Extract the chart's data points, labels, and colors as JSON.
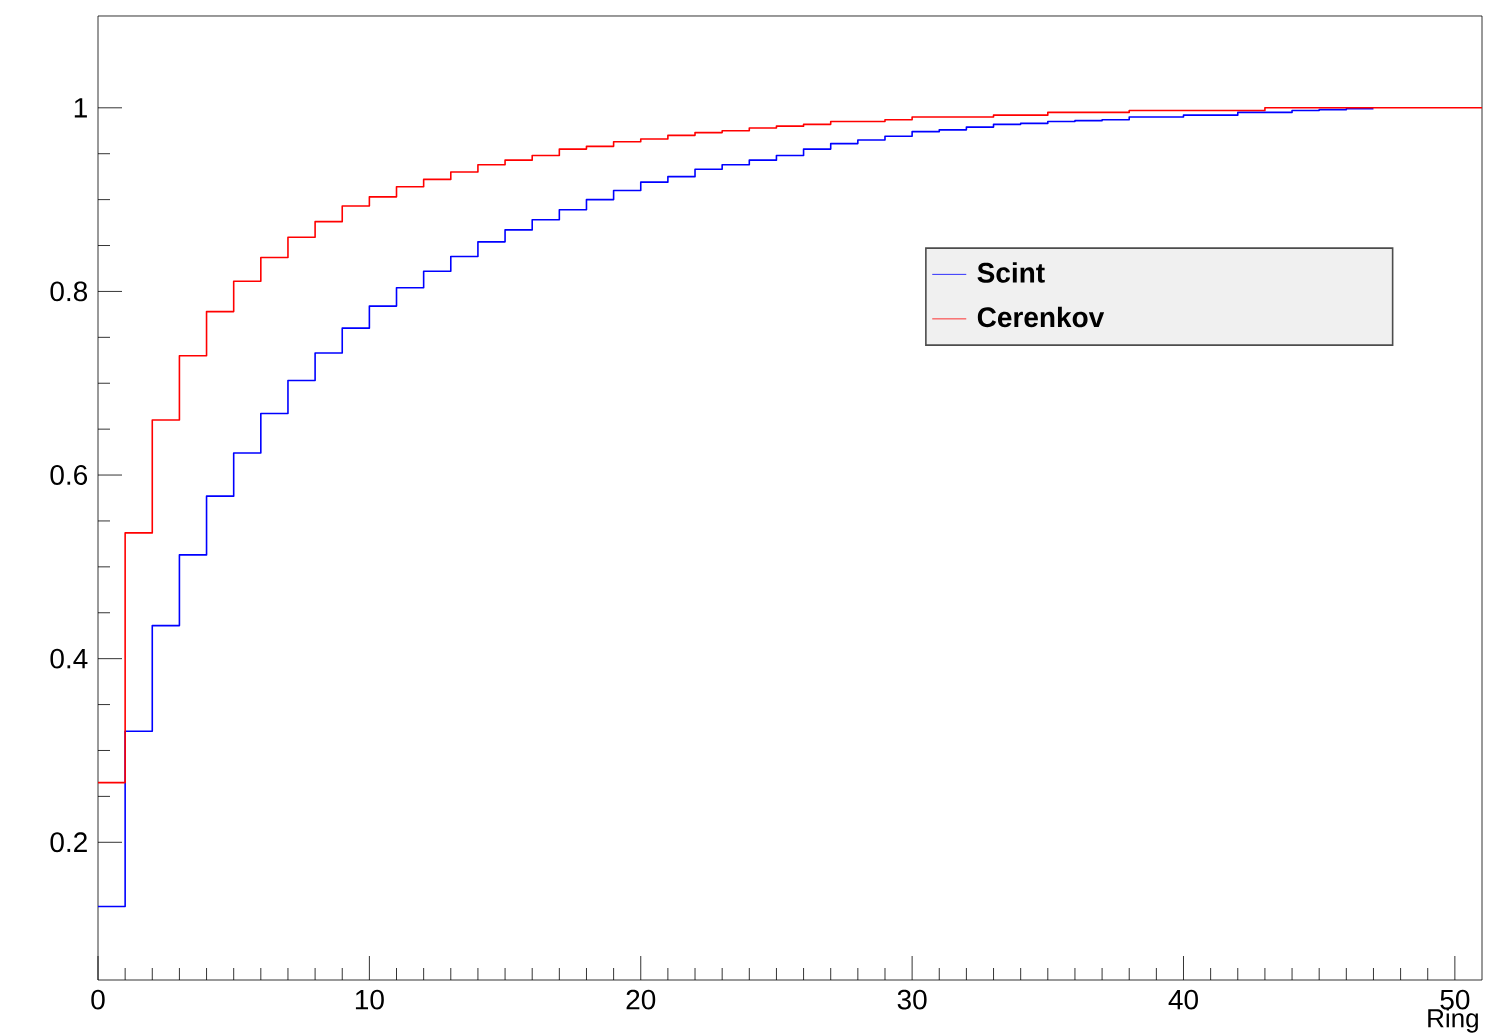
{
  "chart_data": {
    "type": "histogram",
    "xlabel": "Ring",
    "bins": [
      0,
      1,
      2,
      3,
      4,
      5,
      6,
      7,
      8,
      9,
      10,
      11,
      12,
      13,
      14,
      15,
      16,
      17,
      18,
      19,
      20,
      21,
      22,
      23,
      24,
      25,
      26,
      27,
      28,
      29,
      30,
      31,
      32,
      33,
      34,
      35,
      36,
      37,
      38,
      39,
      40,
      41,
      42,
      43,
      44,
      45,
      46,
      47,
      48,
      49,
      50,
      51
    ],
    "series": [
      {
        "name": "Scint",
        "color": "#0000ff",
        "bins": [
          0,
          1,
          2,
          3,
          4,
          5,
          6,
          7,
          8,
          9,
          10,
          11,
          12,
          13,
          14,
          15,
          16,
          17,
          18,
          19,
          20,
          21,
          22,
          23,
          24,
          25,
          26,
          27,
          28,
          29,
          30,
          31,
          32,
          33,
          34,
          35,
          36,
          37,
          38,
          39,
          40,
          41,
          42,
          43,
          44,
          45,
          46,
          47
        ],
        "values": [
          0.13,
          0.321,
          0.436,
          0.513,
          0.577,
          0.624,
          0.667,
          0.703,
          0.733,
          0.76,
          0.784,
          0.804,
          0.822,
          0.838,
          0.854,
          0.867,
          0.878,
          0.889,
          0.9,
          0.91,
          0.919,
          0.925,
          0.933,
          0.938,
          0.943,
          0.948,
          0.955,
          0.961,
          0.965,
          0.969,
          0.974,
          0.976,
          0.979,
          0.982,
          0.983,
          0.985,
          0.986,
          0.987,
          0.99,
          0.99,
          0.992,
          0.992,
          0.995,
          0.995,
          0.997,
          0.998,
          0.999
        ]
      },
      {
        "name": "Cerenkov",
        "color": "#ff0000",
        "values": [
          0.265,
          0.537,
          0.66,
          0.73,
          0.778,
          0.811,
          0.837,
          0.859,
          0.876,
          0.893,
          0.903,
          0.914,
          0.922,
          0.93,
          0.938,
          0.943,
          0.948,
          0.955,
          0.958,
          0.963,
          0.966,
          0.97,
          0.973,
          0.975,
          0.978,
          0.98,
          0.982,
          0.985,
          0.985,
          0.987,
          0.99,
          0.99,
          0.99,
          0.992,
          0.992,
          0.995,
          0.995,
          0.995,
          0.997,
          0.997,
          0.997,
          0.997,
          0.997,
          1.0,
          1.0,
          1.0,
          1.0,
          1.0,
          1.0,
          1.0,
          1.0
        ]
      }
    ],
    "xlim": [
      0,
      51
    ],
    "ylim": [
      0.05,
      1.1
    ],
    "xticks": [
      0,
      10,
      20,
      30,
      40,
      50
    ],
    "yticks": [
      0.2,
      0.4,
      0.6,
      0.8,
      1
    ],
    "grid": false,
    "legend": "right"
  }
}
